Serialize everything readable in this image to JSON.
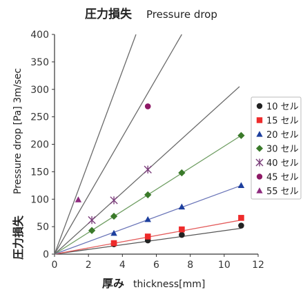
{
  "chart_data": {
    "type": "line",
    "title_jp": "圧力損失",
    "title_en": "Pressure drop",
    "ylabel_en": "Pressure drop [Pa] 3m/sec",
    "ylabel_jp": "圧力損失",
    "xlabel_jp": "厚み",
    "xlabel_en": "thickness[mm]",
    "xlim": [
      0,
      12
    ],
    "ylim": [
      0,
      400
    ],
    "xticks": [
      "0",
      "2",
      "4",
      "6",
      "8",
      "10",
      "12"
    ],
    "yticks": [
      "0",
      "50",
      "100",
      "150",
      "200",
      "250",
      "300",
      "350",
      "400"
    ],
    "grid": false,
    "legend_position": "right",
    "series": [
      {
        "name": "10 セル",
        "marker": "circle",
        "color": "#222222",
        "line_color": "#555555",
        "x": [
          3.5,
          5.5,
          7.5,
          11
        ],
        "y": [
          18,
          25,
          35,
          52
        ]
      },
      {
        "name": "15 セル",
        "marker": "square",
        "color": "#ee2b2b",
        "line_color": "#e35a5a",
        "x": [
          3.5,
          5.5,
          7.5,
          11
        ],
        "y": [
          20,
          32,
          45,
          66
        ]
      },
      {
        "name": "20 セル",
        "marker": "triangle",
        "color": "#1d3f9e",
        "line_color": "#6a75b8",
        "x": [
          3.5,
          5.5,
          7.5,
          11
        ],
        "y": [
          38,
          63,
          86,
          125
        ]
      },
      {
        "name": "30 セル",
        "marker": "diamond",
        "color": "#3a7a2a",
        "line_color": "#6f9e62",
        "x": [
          2.2,
          3.5,
          5.5,
          7.5,
          11
        ],
        "y": [
          43,
          69,
          108,
          148,
          216
        ]
      },
      {
        "name": "40 セル",
        "marker": "asterisk",
        "color": "#7a3d7a",
        "line_color": "#6a6a6a",
        "x": [
          2.2,
          3.5,
          5.5
        ],
        "y": [
          62,
          98,
          154
        ]
      },
      {
        "name": "45 セル",
        "marker": "circle",
        "color": "#8e1a66",
        "line_color": "#6a6a6a",
        "x": [
          5.5
        ],
        "y": [
          269
        ]
      },
      {
        "name": "55 セル",
        "marker": "triangle",
        "color": "#8e2a7e",
        "line_color": "#6a6a6a",
        "x": [
          1.4
        ],
        "y": [
          99
        ]
      }
    ],
    "fit_lines": [
      {
        "series": "10 セル",
        "x_end": 11,
        "y_end": 47
      },
      {
        "series": "15 セル",
        "x_end": 11,
        "y_end": 62
      },
      {
        "series": "20 セル",
        "x_end": 11,
        "y_end": 125
      },
      {
        "series": "30 セル",
        "x_end": 11,
        "y_end": 216
      },
      {
        "series": "40 セル",
        "x_end": 10.9,
        "y_end": 305
      },
      {
        "series": "45 セル",
        "x_end": 7.5,
        "y_end": 400
      },
      {
        "series": "55 セル",
        "x_end": 4.8,
        "y_end": 400
      }
    ]
  }
}
